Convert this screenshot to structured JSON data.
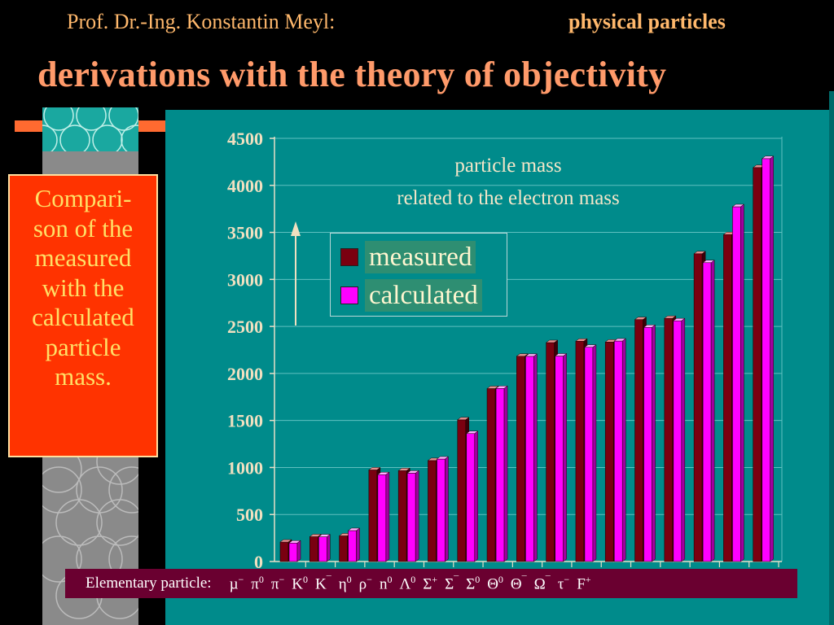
{
  "header": {
    "author": "Prof. Dr.-Ing. Konstantin Meyl:",
    "topic": "physical particles",
    "title": "derivations with the theory of objectivity"
  },
  "sidebar": {
    "comparison_lines": [
      "Compari-",
      "son of the",
      "measured",
      "with the",
      "calculated",
      "particle",
      "mass."
    ]
  },
  "colors": {
    "panel": "#008b8b",
    "measured": "#7a0010",
    "calculated": "#ff00ff",
    "title_text": "#ff9a6a",
    "xbar": "#6a0030"
  },
  "chart_data": {
    "type": "bar",
    "title_lines": [
      "particle mass",
      "related to the electron mass"
    ],
    "xlabel": "Elementary particle:",
    "ylabel": "",
    "ylim": [
      0,
      4500
    ],
    "yticks": [
      0,
      500,
      1000,
      1500,
      2000,
      2500,
      3000,
      3500,
      4000,
      4500
    ],
    "legend_position": "inside-top-left",
    "categories": [
      {
        "base": "µ",
        "sup": "−"
      },
      {
        "base": "π",
        "sup": "0"
      },
      {
        "base": "π",
        "sup": "−"
      },
      {
        "base": "K",
        "sup": "0"
      },
      {
        "base": "K",
        "sup": "¯"
      },
      {
        "base": "η",
        "sup": "0"
      },
      {
        "base": "ρ",
        "sup": "−"
      },
      {
        "base": "n",
        "sup": "0"
      },
      {
        "base": "Λ",
        "sup": "0"
      },
      {
        "base": "Σ",
        "sup": "+"
      },
      {
        "base": "Σ",
        "sup": "¯"
      },
      {
        "base": "Σ",
        "sup": "0"
      },
      {
        "base": "Θ",
        "sup": "0"
      },
      {
        "base": "Θ",
        "sup": "¯"
      },
      {
        "base": "Ω",
        "sup": "¯"
      },
      {
        "base": "τ",
        "sup": "−"
      },
      {
        "base": "F",
        "sup": "+"
      }
    ],
    "series": [
      {
        "name": "measured",
        "values": [
          207,
          264,
          273,
          974,
          966,
          1074,
          1507,
          1839,
          2183,
          2328,
          2343,
          2334,
          2573,
          2586,
          3273,
          3477,
          4190
        ]
      },
      {
        "name": "calculated",
        "values": [
          197,
          263,
          329,
          924,
          940,
          1090,
          1361,
          1841,
          2182,
          2185,
          2279,
          2345,
          2490,
          2560,
          3178,
          3773,
          4285
        ]
      }
    ]
  }
}
